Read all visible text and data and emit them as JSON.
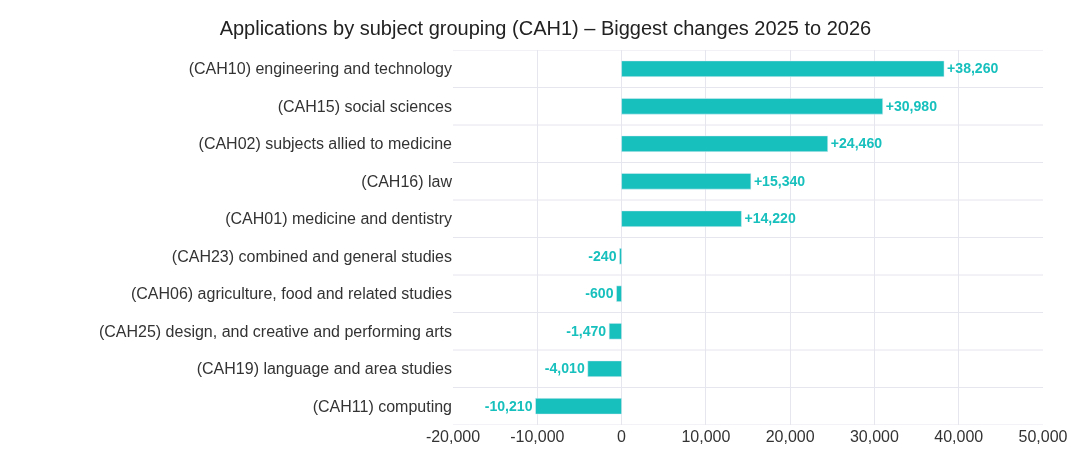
{
  "chart_data": {
    "type": "bar",
    "orientation": "horizontal",
    "title": "Applications by subject grouping (CAH1) – Biggest changes 2025 to 2026",
    "categories": [
      "(CAH10) engineering and technology",
      "(CAH15) social sciences",
      "(CAH02) subjects allied to medicine",
      "(CAH16) law",
      "(CAH01) medicine and dentistry",
      "(CAH23) combined and general studies",
      "(CAH06) agriculture, food and related studies",
      "(CAH25) design, and creative and performing arts",
      "(CAH19) language and area studies",
      "(CAH11) computing"
    ],
    "values": [
      38260,
      30980,
      24460,
      15340,
      14220,
      -240,
      -600,
      -1470,
      -4010,
      -10210
    ],
    "value_labels": [
      "+38,260",
      "+30,980",
      "+24,460",
      "+15,340",
      "+14,220",
      "-240",
      "-600",
      "-1,470",
      "-4,010",
      "-10,210"
    ],
    "color": "#17c0bd",
    "xlim": [
      -20000,
      50000
    ],
    "xticks": [
      {
        "value": -20000,
        "label": "-20,000"
      },
      {
        "value": -10000,
        "label": "-10,000"
      },
      {
        "value": 0,
        "label": "0"
      },
      {
        "value": 10000,
        "label": "10,000"
      },
      {
        "value": 20000,
        "label": "20,000"
      },
      {
        "value": 30000,
        "label": "30,000"
      },
      {
        "value": 40000,
        "label": "40,000"
      },
      {
        "value": 50000,
        "label": "50,000"
      }
    ],
    "grid": true
  }
}
